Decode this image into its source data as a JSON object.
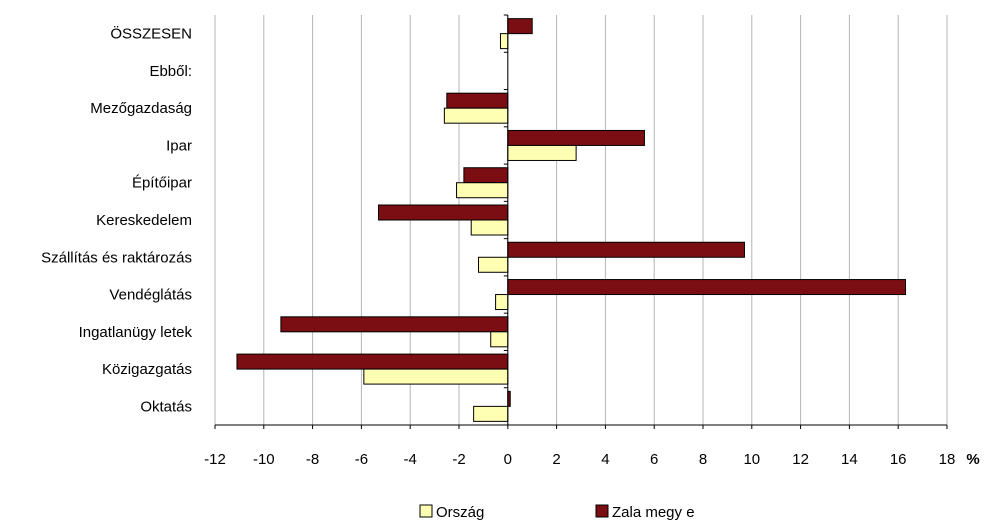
{
  "chart_data": {
    "type": "bar",
    "orientation": "horizontal",
    "categories": [
      "ÖSSZESEN",
      "Ebből:",
      "Mezőgazdaság",
      "Ipar",
      "Építőipar",
      "Kereskedelem",
      "Szállítás és raktározás",
      "Vendéglátás",
      "Ingatlanügy letek",
      "Közigazgatás",
      "Oktatás"
    ],
    "series": [
      {
        "name": "Zala megy e",
        "color": "#7a0e12",
        "values": [
          1.0,
          null,
          -2.5,
          5.6,
          -1.8,
          -5.3,
          9.7,
          16.3,
          -9.3,
          -11.1,
          0.1
        ]
      },
      {
        "name": "Ország",
        "color": "#ffffb4",
        "values": [
          -0.3,
          null,
          -2.6,
          2.8,
          -2.1,
          -1.5,
          -1.2,
          -0.5,
          -0.7,
          -5.9,
          -1.4
        ]
      }
    ],
    "xlim": [
      -12,
      18
    ],
    "xticks": [
      "-12",
      "-10",
      "-8",
      "-6",
      "-4",
      "-2",
      "0",
      "2",
      "4",
      "6",
      "8",
      "10",
      "12",
      "14",
      "16",
      "18"
    ],
    "unit": "%",
    "grid": true,
    "legend_position": "bottom"
  }
}
